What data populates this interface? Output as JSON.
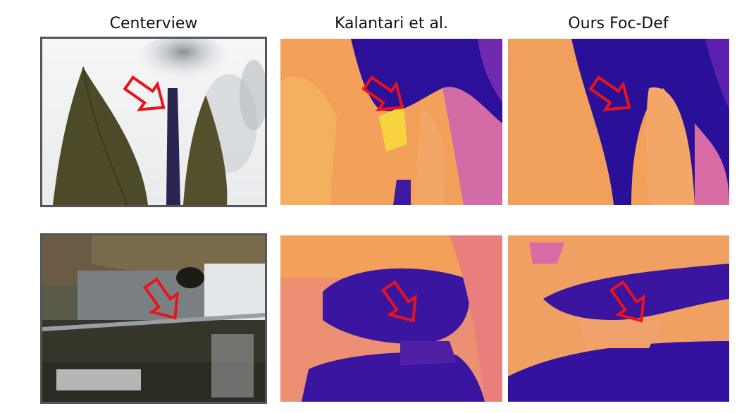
{
  "columns": [
    {
      "title": "Centerview"
    },
    {
      "title": "Kalantari et al."
    },
    {
      "title": "Ours Foc-Def"
    }
  ],
  "colors": {
    "arrow": "#e8141a",
    "depth_near": "#f5a45a",
    "depth_far": "#2a0f9c",
    "depth_mid": "#d56aa8"
  }
}
